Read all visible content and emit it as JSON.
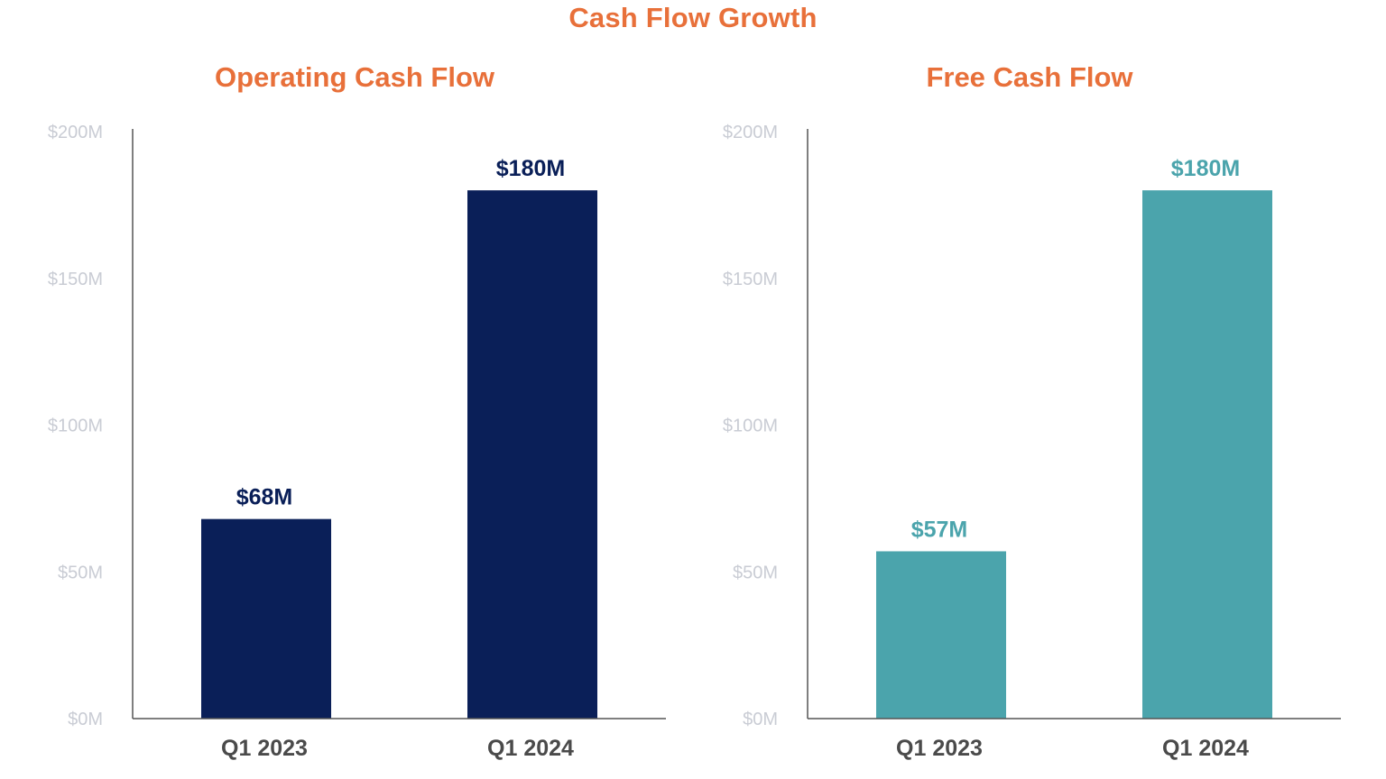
{
  "title": "Cash Flow Growth",
  "colors": {
    "title": "#E8703A",
    "operating_bar": "#0A1F58",
    "free_bar": "#4BA4AC",
    "axis": "#555555",
    "tick_text": "#C9CCD4",
    "category_text": "#4A4A4A"
  },
  "chart_data": [
    {
      "type": "bar",
      "title": "Operating Cash Flow",
      "categories": [
        "Q1 2023",
        "Q1 2024"
      ],
      "values": [
        68,
        180
      ],
      "value_labels": [
        "$68M",
        "$180M"
      ],
      "ylim": [
        0,
        200
      ],
      "yticks": [
        0,
        50,
        100,
        150,
        200
      ],
      "ytick_labels": [
        "$0M",
        "$50M",
        "$100M",
        "$150M",
        "$200M"
      ],
      "unit": "$M",
      "xlabel": "",
      "ylabel": "",
      "grid": false,
      "bar_color": "#0A1F58",
      "label_color": "#0A1F58"
    },
    {
      "type": "bar",
      "title": "Free Cash Flow",
      "categories": [
        "Q1 2023",
        "Q1 2024"
      ],
      "values": [
        57,
        180
      ],
      "value_labels": [
        "$57M",
        "$180M"
      ],
      "ylim": [
        0,
        200
      ],
      "yticks": [
        0,
        50,
        100,
        150,
        200
      ],
      "ytick_labels": [
        "$0M",
        "$50M",
        "$100M",
        "$150M",
        "$200M"
      ],
      "unit": "$M",
      "xlabel": "",
      "ylabel": "",
      "grid": false,
      "bar_color": "#4BA4AC",
      "label_color": "#4BA4AC"
    }
  ]
}
